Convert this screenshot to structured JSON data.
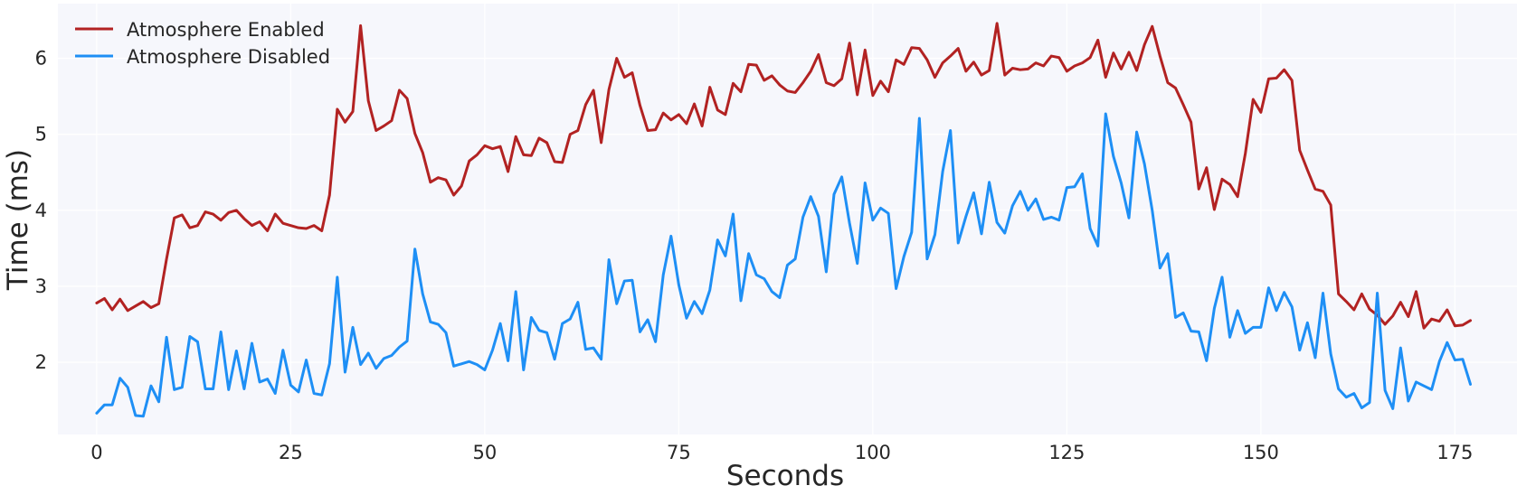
{
  "chart_data": {
    "type": "line",
    "title": "",
    "xlabel": "Seconds",
    "ylabel": "Time (ms)",
    "xlim": [
      -5,
      183
    ],
    "ylim": [
      1.05,
      6.72
    ],
    "xticks": [
      0,
      25,
      50,
      75,
      100,
      125,
      150,
      175
    ],
    "yticks": [
      2,
      3,
      4,
      5,
      6
    ],
    "grid": true,
    "legend_position": "top-left",
    "background": "#f6f7fc",
    "series": [
      {
        "name": "Atmosphere Enabled",
        "color": "#b22222",
        "values": [
          2.78,
          2.84,
          2.69,
          2.83,
          2.68,
          2.74,
          2.8,
          2.72,
          2.77,
          3.36,
          3.9,
          3.94,
          3.77,
          3.8,
          3.98,
          3.95,
          3.87,
          3.97,
          4.0,
          3.89,
          3.8,
          3.85,
          3.73,
          3.95,
          3.83,
          3.8,
          3.77,
          3.76,
          3.8,
          3.73,
          4.2,
          5.33,
          5.16,
          5.3,
          6.43,
          5.44,
          5.05,
          5.11,
          5.18,
          5.58,
          5.47,
          5.01,
          4.76,
          4.37,
          4.43,
          4.4,
          4.2,
          4.32,
          4.65,
          4.73,
          4.85,
          4.81,
          4.84,
          4.51,
          4.97,
          4.73,
          4.72,
          4.95,
          4.89,
          4.64,
          4.63,
          5.0,
          5.05,
          5.39,
          5.58,
          4.89,
          5.59,
          6.0,
          5.75,
          5.81,
          5.38,
          5.05,
          5.06,
          5.28,
          5.19,
          5.26,
          5.14,
          5.4,
          5.11,
          5.62,
          5.32,
          5.26,
          5.67,
          5.56,
          5.92,
          5.91,
          5.71,
          5.77,
          5.65,
          5.57,
          5.55,
          5.68,
          5.83,
          6.05,
          5.68,
          5.64,
          5.73,
          6.2,
          5.52,
          6.11,
          5.51,
          5.7,
          5.56,
          5.98,
          5.92,
          6.14,
          6.13,
          5.98,
          5.75,
          5.94,
          6.03,
          6.13,
          5.83,
          5.95,
          5.78,
          5.84,
          6.46,
          5.78,
          5.87,
          5.85,
          5.86,
          5.94,
          5.9,
          6.03,
          6.01,
          5.83,
          5.9,
          5.94,
          6.01,
          6.24,
          5.75,
          6.07,
          5.86,
          6.08,
          5.84,
          6.18,
          6.42,
          6.03,
          5.68,
          5.61,
          5.39,
          5.16,
          4.28,
          4.56,
          4.01,
          4.41,
          4.34,
          4.18,
          4.75,
          5.46,
          5.29,
          5.73,
          5.74,
          5.85,
          5.71,
          4.79,
          4.53,
          4.28,
          4.25,
          4.07,
          2.9,
          2.8,
          2.69,
          2.9,
          2.7,
          2.62,
          2.5,
          2.61,
          2.79,
          2.6,
          2.93,
          2.45,
          2.57,
          2.54,
          2.69,
          2.48,
          2.49,
          2.55
        ]
      },
      {
        "name": "Atmosphere Disabled",
        "color": "#1e8ff5",
        "values": [
          1.33,
          1.44,
          1.44,
          1.79,
          1.67,
          1.3,
          1.29,
          1.69,
          1.48,
          2.33,
          1.64,
          1.67,
          2.34,
          2.27,
          1.65,
          1.65,
          2.4,
          1.64,
          2.15,
          1.65,
          2.25,
          1.74,
          1.78,
          1.59,
          2.16,
          1.7,
          1.61,
          2.03,
          1.59,
          1.57,
          1.98,
          3.12,
          1.87,
          2.46,
          1.97,
          2.12,
          1.92,
          2.05,
          2.09,
          2.2,
          2.28,
          3.49,
          2.9,
          2.53,
          2.5,
          2.39,
          1.95,
          1.98,
          2.01,
          1.97,
          1.9,
          2.16,
          2.51,
          2.02,
          2.93,
          1.9,
          2.59,
          2.42,
          2.39,
          2.04,
          2.51,
          2.57,
          2.79,
          2.17,
          2.19,
          2.04,
          3.35,
          2.77,
          3.07,
          3.08,
          2.4,
          2.56,
          2.27,
          3.15,
          3.66,
          3.02,
          2.58,
          2.8,
          2.64,
          2.95,
          3.61,
          3.4,
          3.95,
          2.81,
          3.43,
          3.15,
          3.1,
          2.93,
          2.85,
          3.28,
          3.36,
          3.91,
          4.18,
          3.92,
          3.19,
          4.21,
          4.44,
          3.83,
          3.3,
          4.36,
          3.87,
          4.03,
          3.96,
          2.97,
          3.39,
          3.71,
          5.21,
          3.36,
          3.68,
          4.51,
          5.05,
          3.57,
          3.92,
          4.23,
          3.69,
          4.37,
          3.84,
          3.7,
          4.06,
          4.25,
          4.0,
          4.15,
          3.88,
          3.91,
          3.87,
          4.3,
          4.31,
          4.48,
          3.76,
          3.53,
          5.27,
          4.71,
          4.36,
          3.9,
          5.03,
          4.61,
          4.0,
          3.24,
          3.43,
          2.59,
          2.65,
          2.41,
          2.4,
          2.02,
          2.71,
          3.12,
          2.33,
          2.68,
          2.38,
          2.46,
          2.46,
          2.98,
          2.68,
          2.92,
          2.73,
          2.16,
          2.52,
          2.06,
          2.91,
          2.11,
          1.65,
          1.54,
          1.59,
          1.4,
          1.47,
          2.91,
          1.63,
          1.39,
          2.19,
          1.49,
          1.74,
          1.69,
          1.64,
          2.01,
          2.26,
          2.03,
          2.04,
          1.71
        ]
      }
    ]
  }
}
